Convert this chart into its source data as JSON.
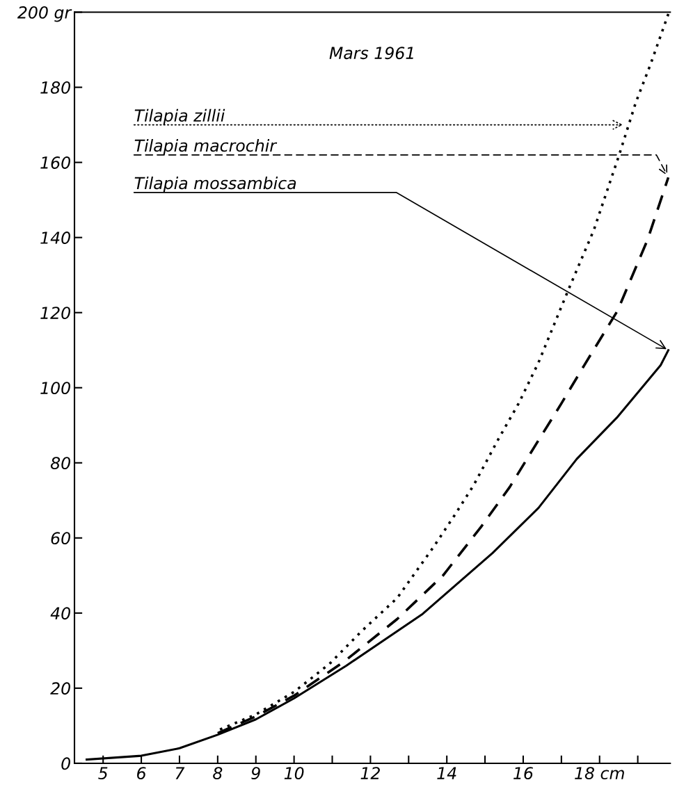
{
  "chart_data": {
    "type": "line",
    "title": "Mars 1961",
    "xlim": [
      4.25,
      19.85
    ],
    "ylim": [
      0,
      200
    ],
    "xticks": [
      5,
      6,
      7,
      8,
      9,
      10,
      {
        "value": 11,
        "label": null
      },
      12,
      {
        "value": 13,
        "label": null
      },
      14,
      {
        "value": 15,
        "label": null
      },
      16,
      {
        "value": 17,
        "label": null
      },
      {
        "value": 18,
        "label": "18 cm"
      },
      {
        "value": 19,
        "label": null
      }
    ],
    "yticks": [
      0,
      20,
      40,
      60,
      80,
      100,
      120,
      140,
      160,
      180,
      {
        "value": 200,
        "label": "200 gr"
      }
    ],
    "grid": false,
    "legend": false,
    "series": [
      {
        "name": "Tilapia zillii",
        "color": "#000000",
        "line_style": "dotted",
        "x": [
          8.06,
          9,
          10,
          10.93,
          11.75,
          12.7,
          13.66,
          14.2,
          14.7,
          15.36,
          15.88,
          16.4,
          17.18,
          17.85,
          18.5,
          18.95,
          19.33,
          19.8
        ],
        "values": [
          9,
          13,
          19,
          26.5,
          35,
          44,
          57.7,
          66,
          74,
          86.5,
          95.8,
          106.7,
          126,
          142,
          161.6,
          176,
          186,
          199.5
        ]
      },
      {
        "name": "Tilapia macrochir",
        "color": "#000000",
        "line_style": "dashed",
        "x": [
          8,
          9,
          10,
          11.3,
          12.7,
          13.9,
          14.9,
          15.65,
          16.4,
          17.0,
          17.6,
          18.47,
          19.26,
          19.8
        ],
        "values": [
          8,
          12.5,
          18,
          27,
          38.4,
          50,
          63,
          73.6,
          86,
          95.8,
          106,
          120.5,
          139.5,
          156
        ]
      },
      {
        "name": "Tilapia mossambica",
        "color": "#000000",
        "line_style": "solid",
        "x": [
          4.57,
          6,
          7,
          8,
          9,
          10,
          11.37,
          13.37,
          15.2,
          16.4,
          17.4,
          18.45,
          19.6,
          19.8
        ],
        "values": [
          1,
          2,
          4,
          7.6,
          11.7,
          17.3,
          26,
          39.8,
          56,
          68,
          81,
          92,
          106,
          110
        ]
      }
    ]
  }
}
